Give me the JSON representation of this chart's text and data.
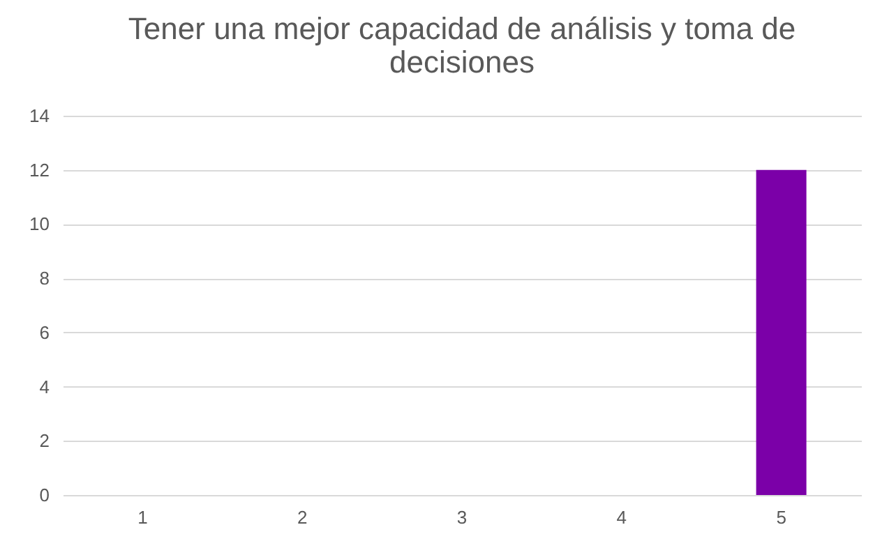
{
  "chart_data": {
    "type": "bar",
    "title": "Tener una mejor capacidad de análisis y toma de decisiones",
    "categories": [
      "1",
      "2",
      "3",
      "4",
      "5"
    ],
    "values": [
      0,
      0,
      0,
      0,
      12
    ],
    "color": "#7b00a8",
    "ylim": [
      0,
      14
    ],
    "yticks": [
      0,
      2,
      4,
      6,
      8,
      10,
      12,
      14
    ],
    "grid": "y"
  }
}
